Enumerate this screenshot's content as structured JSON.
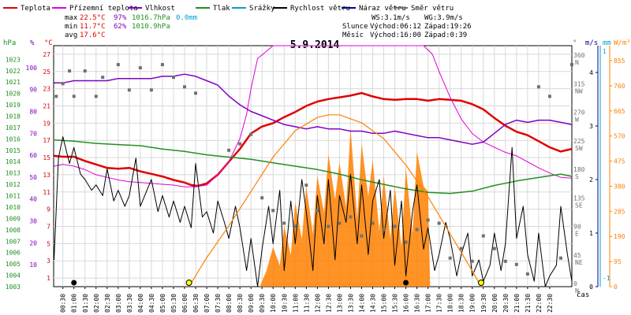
{
  "legend": [
    {
      "label": "Teplota",
      "color": "#e00000"
    },
    {
      "label": "Přízemní teplota",
      "color": "#e000e0"
    },
    {
      "label": "Vlhkost",
      "color": "#8000c0"
    },
    {
      "label": "Tlak",
      "color": "#209020"
    },
    {
      "label": "Srážky",
      "color": "#00a0d0"
    },
    {
      "label": "Rychlost větru",
      "color": "#000000"
    },
    {
      "label": "Náraz větru",
      "color": "#000090"
    },
    {
      "label": "Směr větru",
      "color": "#707070"
    }
  ],
  "stats": {
    "max_label": "max",
    "max_temp": "22.5°C",
    "max_hum": "97%",
    "max_press": "1016.7hPa",
    "max_rain": "0.0mm",
    "min_label": "min",
    "min_temp": "11.7°C",
    "min_hum": "62%",
    "min_press": "1010.9hPa",
    "avg_label": "avg",
    "avg_temp": "17.6°C"
  },
  "wind_info": {
    "ws": "WS:3.1m/s",
    "wg": "WG:3.9m/s"
  },
  "sun_moon": {
    "slunce": "Slunce",
    "slunce_vychod": "Východ:06:12",
    "slunce_zapad": "Západ:19:26",
    "mesic": "Měsíc",
    "mesic_vychod": "Východ:16:00",
    "mesic_zapad": "Západ:0:39"
  },
  "title": "5.9.2014",
  "axis_units": {
    "hpa": "hPa",
    "pct": "%",
    "temp": "°C",
    "deg": "°",
    "ms": "m/s",
    "mm": "mm",
    "wm2": "W/m²",
    "cas": "čas"
  },
  "axis_ticks": {
    "hpa": [
      "1003",
      "1004",
      "1005",
      "1006",
      "1007",
      "1008",
      "1009",
      "1010",
      "1011",
      "1012",
      "1013",
      "1014",
      "1015",
      "1016",
      "1017",
      "1018",
      "1019",
      "1020",
      "1021",
      "1022",
      "1023"
    ],
    "pct": [
      "10",
      "20",
      "30",
      "40",
      "50",
      "60",
      "70",
      "80",
      "90",
      "100"
    ],
    "temp": [
      "1",
      "3",
      "5",
      "7",
      "9",
      "11",
      "13",
      "15",
      "17",
      "19",
      "21",
      "23",
      "25",
      "27"
    ],
    "deg": [
      "0",
      "45",
      "90",
      "135",
      "180",
      "225",
      "270",
      "315",
      "360"
    ],
    "dir": [
      "N",
      "NE",
      "E",
      "SE",
      "S",
      "SW",
      "W",
      "NW",
      "N"
    ],
    "ms": [
      "0",
      "1",
      "2",
      "3",
      "4"
    ],
    "mm": [
      "1",
      "-1"
    ],
    "wm2": [
      "0",
      "95",
      "190",
      "285",
      "380",
      "475",
      "570",
      "665",
      "760",
      "855"
    ]
  },
  "time_ticks": [
    "00:30",
    "01:00",
    "01:30",
    "02:00",
    "02:30",
    "03:00",
    "03:30",
    "04:00",
    "04:30",
    "05:00",
    "05:30",
    "06:00",
    "06:30",
    "07:00",
    "07:30",
    "08:00",
    "08:30",
    "09:00",
    "09:30",
    "10:00",
    "10:30",
    "11:00",
    "11:30",
    "12:00",
    "12:30",
    "13:00",
    "13:30",
    "14:00",
    "14:30",
    "15:00",
    "15:30",
    "16:00",
    "16:30",
    "17:00",
    "17:30",
    "18:00",
    "18:30",
    "19:00",
    "19:30",
    "20:00",
    "20:30",
    "21:00",
    "21:30",
    "22:00",
    "22:30"
  ],
  "chart_data": {
    "type": "line",
    "title": "5.9.2014",
    "x_range": [
      0.083,
      23.5
    ],
    "series": [
      {
        "name": "Teplota",
        "unit": "°C",
        "color": "#e00000",
        "x": [
          0.1,
          0.5,
          1.0,
          1.5,
          2.0,
          2.5,
          3.0,
          3.5,
          4.0,
          4.5,
          5.0,
          5.5,
          6.0,
          6.3,
          6.6,
          7.0,
          7.5,
          8.0,
          8.5,
          9.0,
          9.5,
          10.0,
          10.5,
          11.0,
          11.5,
          12.0,
          12.5,
          13.0,
          13.5,
          14.0,
          14.5,
          15.0,
          15.5,
          16.0,
          16.5,
          17.0,
          17.5,
          18.0,
          18.5,
          19.0,
          19.5,
          20.0,
          20.5,
          21.0,
          21.5,
          22.0,
          22.5,
          23.0,
          23.5
        ],
        "y": [
          15.2,
          15.1,
          15.1,
          14.6,
          14.2,
          13.8,
          13.7,
          13.8,
          13.4,
          13.1,
          12.8,
          12.4,
          12.1,
          11.8,
          11.7,
          12.0,
          13.0,
          14.5,
          16.0,
          17.8,
          18.6,
          19.0,
          19.7,
          20.3,
          21.0,
          21.5,
          21.8,
          22.0,
          22.2,
          22.5,
          22.1,
          21.8,
          21.7,
          21.8,
          21.8,
          21.6,
          21.8,
          21.7,
          21.6,
          21.2,
          20.6,
          19.6,
          18.7,
          18.0,
          17.6,
          16.9,
          16.2,
          15.7,
          16.0
        ]
      },
      {
        "name": "Přízemní teplota",
        "unit": "°C",
        "color": "#e000e0",
        "x": [
          0.1,
          0.5,
          1.0,
          1.5,
          2.0,
          2.5,
          3.0,
          3.5,
          4.0,
          4.5,
          5.0,
          5.5,
          6.0,
          6.5,
          7.0,
          7.5,
          8.0,
          8.5,
          8.8,
          9.0,
          9.3,
          10.0,
          11.0,
          12.0,
          13.0,
          14.0,
          15.0,
          16.0,
          16.8,
          17.2,
          17.5,
          18.0,
          18.5,
          19.0,
          19.5,
          20.0,
          20.5,
          21.0,
          21.5,
          22.0,
          22.5,
          23.0,
          23.5
        ],
        "y": [
          14.0,
          14.2,
          14.0,
          13.6,
          13.0,
          12.7,
          12.4,
          12.2,
          12.1,
          12.0,
          11.9,
          11.8,
          11.6,
          11.6,
          11.8,
          13.0,
          14.5,
          17.2,
          20.0,
          23.0,
          26.5,
          28.0,
          28.0,
          28.0,
          28.0,
          28.0,
          28.0,
          28.0,
          28.0,
          27.0,
          25.0,
          22.0,
          19.5,
          17.8,
          16.8,
          16.2,
          15.6,
          15.2,
          14.5,
          13.8,
          13.2,
          12.7,
          12.6
        ]
      },
      {
        "name": "Vlhkost",
        "unit": "%",
        "color": "#8000c0",
        "x": [
          0.1,
          0.5,
          1.0,
          1.5,
          2.0,
          2.5,
          3.0,
          3.5,
          4.0,
          4.5,
          5.0,
          5.5,
          6.0,
          6.5,
          7.0,
          7.5,
          8.0,
          8.5,
          9.0,
          9.5,
          10.0,
          10.5,
          11.0,
          11.5,
          12.0,
          12.5,
          13.0,
          13.5,
          14.0,
          14.5,
          15.0,
          15.5,
          16.0,
          16.5,
          17.0,
          17.5,
          18.0,
          18.5,
          19.0,
          19.5,
          20.0,
          20.5,
          21.0,
          21.5,
          22.0,
          22.5,
          23.0,
          23.5
        ],
        "y": [
          93,
          93,
          94,
          94,
          94,
          94,
          95,
          95,
          95,
          95,
          96,
          96,
          97,
          96,
          94,
          92,
          87,
          83,
          80,
          78,
          76,
          74,
          73,
          72,
          73,
          72,
          72,
          71,
          71,
          70,
          70,
          71,
          70,
          69,
          68,
          68,
          67,
          66,
          65,
          66,
          70,
          74,
          76,
          75,
          76,
          76,
          75,
          74
        ]
      },
      {
        "name": "Tlak",
        "unit": "hPa",
        "color": "#209020",
        "x": [
          0.1,
          1.0,
          2.0,
          3.0,
          4.0,
          5.0,
          6.0,
          7.0,
          8.0,
          9.0,
          10.0,
          11.0,
          12.0,
          13.0,
          14.0,
          15.0,
          16.0,
          17.0,
          18.0,
          19.0,
          20.0,
          21.0,
          22.0,
          23.0,
          23.5
        ],
        "y": [
          1015.9,
          1015.8,
          1015.6,
          1015.5,
          1015.4,
          1015.1,
          1014.9,
          1014.6,
          1014.4,
          1014.2,
          1013.9,
          1013.6,
          1013.3,
          1012.9,
          1012.4,
          1012.0,
          1011.6,
          1011.3,
          1011.2,
          1011.4,
          1011.9,
          1012.3,
          1012.6,
          1012.9,
          1012.7
        ]
      },
      {
        "name": "Rychlost větru",
        "unit": "m/s",
        "color": "#000000",
        "x": [
          0.1,
          0.3,
          0.5,
          0.8,
          1.0,
          1.3,
          1.5,
          1.8,
          2.0,
          2.3,
          2.5,
          2.8,
          3.0,
          3.3,
          3.5,
          3.8,
          4.0,
          4.3,
          4.5,
          4.8,
          5.0,
          5.3,
          5.5,
          5.8,
          6.0,
          6.3,
          6.5,
          6.8,
          7.0,
          7.3,
          7.5,
          7.8,
          8.0,
          8.3,
          8.5,
          8.8,
          9.0,
          9.3,
          9.5,
          9.8,
          10.0,
          10.3,
          10.5,
          10.8,
          11.0,
          11.3,
          11.5,
          11.8,
          12.0,
          12.3,
          12.5,
          12.8,
          13.0,
          13.3,
          13.5,
          13.8,
          14.0,
          14.3,
          14.5,
          14.8,
          15.0,
          15.3,
          15.5,
          15.8,
          16.0,
          16.3,
          16.5,
          16.8,
          17.0,
          17.3,
          17.5,
          17.8,
          18.0,
          18.3,
          18.5,
          18.8,
          19.0,
          19.3,
          19.5,
          19.8,
          20.0,
          20.3,
          20.5,
          20.8,
          21.0,
          21.3,
          21.5,
          21.8,
          22.0,
          22.3,
          22.5,
          22.8,
          23.0,
          23.3,
          23.5
        ],
        "y": [
          0.5,
          2.4,
          2.8,
          2.3,
          2.6,
          2.1,
          2.0,
          1.8,
          1.9,
          1.7,
          2.2,
          1.6,
          1.8,
          1.5,
          1.7,
          2.4,
          1.5,
          1.8,
          2.0,
          1.4,
          1.7,
          1.3,
          1.6,
          1.2,
          1.5,
          1.1,
          2.3,
          1.3,
          1.4,
          1.0,
          1.6,
          1.2,
          0.9,
          1.5,
          1.1,
          0.3,
          0.9,
          0.0,
          0.7,
          1.5,
          0.8,
          1.8,
          0.3,
          1.6,
          0.8,
          2.0,
          1.4,
          0.3,
          1.7,
          0.8,
          2.0,
          0.5,
          1.7,
          1.2,
          2.1,
          0.8,
          1.9,
          0.6,
          1.6,
          2.0,
          0.9,
          1.8,
          0.4,
          1.6,
          0.2,
          1.4,
          1.9,
          0.7,
          1.1,
          0.3,
          0.6,
          1.2,
          0.9,
          0.2,
          0.6,
          1.0,
          0.2,
          0.5,
          0.1,
          0.4,
          1.0,
          0.3,
          0.8,
          2.6,
          0.9,
          1.5,
          0.6,
          0.1,
          1.0,
          0.0,
          0.2,
          0.4,
          1.5,
          0.6,
          0.1
        ]
      },
      {
        "name": "Sluneční záření",
        "unit": "W/m²",
        "color": "#ff8000",
        "x": [
          6.2,
          7,
          8,
          9,
          10,
          11,
          12,
          12.5,
          13,
          14,
          15,
          16,
          17,
          18,
          19,
          19.4
        ],
        "y": [
          0,
          110,
          230,
          360,
          490,
          590,
          640,
          650,
          650,
          620,
          560,
          460,
          340,
          200,
          60,
          0
        ]
      },
      {
        "name": "Sluneční záření (měřené)",
        "unit": "W/m²",
        "color": "#ff8000",
        "x": [
          9.4,
          9.7,
          10.0,
          10.3,
          10.5,
          10.8,
          11.0,
          11.3,
          11.5,
          11.8,
          12.0,
          12.3,
          12.5,
          12.8,
          13.0,
          13.3,
          13.5,
          13.8,
          14.0,
          14.3,
          14.5,
          14.8,
          15.0,
          15.3,
          15.5,
          15.8,
          16.0,
          16.3,
          16.5,
          16.8,
          17.0,
          17.1
        ],
        "y": [
          0,
          60,
          150,
          80,
          230,
          120,
          320,
          180,
          380,
          200,
          420,
          280,
          500,
          330,
          470,
          300,
          600,
          260,
          540,
          340,
          480,
          210,
          420,
          180,
          380,
          150,
          450,
          200,
          510,
          380,
          360,
          0
        ]
      },
      {
        "name": "Směr větru",
        "unit": "°",
        "color": "#707070",
        "x": [
          0.2,
          0.5,
          0.8,
          1.0,
          1.5,
          2.0,
          2.3,
          3.0,
          3.5,
          4.0,
          4.5,
          5.0,
          5.5,
          6.0,
          6.5,
          8.0,
          8.5,
          9.0,
          9.5,
          10.0,
          10.5,
          11.0,
          11.5,
          12.0,
          12.5,
          13.0,
          13.5,
          14.0,
          14.5,
          15.0,
          15.5,
          16.0,
          16.5,
          17.0,
          17.5,
          18.0,
          18.5,
          19.0,
          19.5,
          20.0,
          20.5,
          21.0,
          21.5,
          22.0,
          22.5,
          23.0,
          23.5
        ],
        "y": [
          300,
          320,
          340,
          300,
          340,
          300,
          330,
          350,
          310,
          345,
          310,
          350,
          330,
          315,
          305,
          215,
          225,
          240,
          140,
          120,
          100,
          95,
          160,
          120,
          95,
          100,
          110,
          80,
          100,
          90,
          95,
          70,
          90,
          105,
          100,
          45,
          60,
          40,
          80,
          60,
          40,
          35,
          20,
          315,
          300,
          45,
          350
        ]
      }
    ]
  },
  "markers": {
    "black_dots": [
      {
        "x": 1.0
      },
      {
        "x": 16.0
      }
    ],
    "yellow_dots": [
      {
        "x": 6.2
      },
      {
        "x": 19.4
      }
    ]
  }
}
